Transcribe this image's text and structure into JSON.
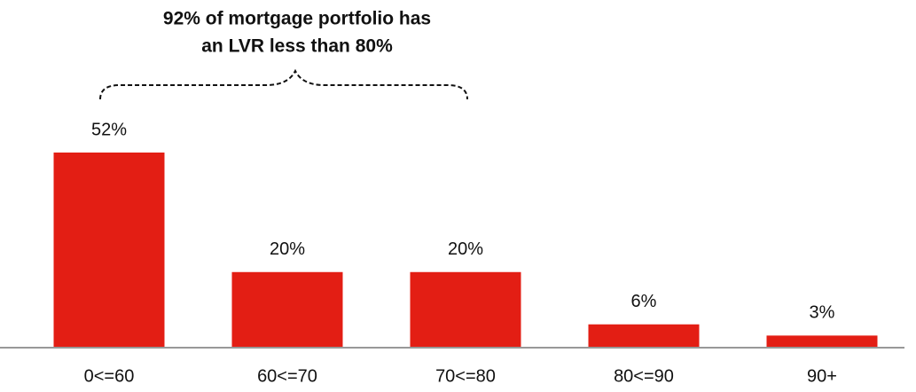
{
  "chart_data": {
    "type": "bar",
    "annotation_lines": [
      "92% of mortgage portfolio has",
      "an LVR less than 80%"
    ],
    "categories": [
      "0<=60",
      "60<=70",
      "70<=80",
      "80<=90",
      "90+"
    ],
    "values": [
      52,
      20,
      20,
      6,
      3
    ],
    "value_labels": [
      "52%",
      "20%",
      "20%",
      "6%",
      "3%"
    ],
    "color": "#e31e14"
  }
}
